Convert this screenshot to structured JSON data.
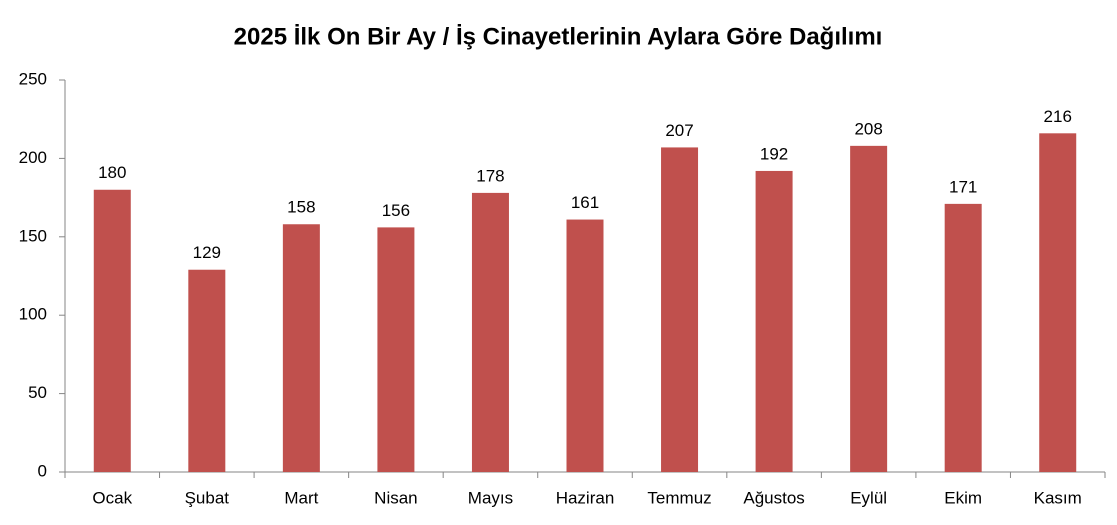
{
  "chart_data": {
    "type": "bar",
    "title": "2025 İlk On Bir Ay / İş Cinayetlerinin Aylara Göre Dağılımı",
    "categories": [
      "Ocak",
      "Şubat",
      "Mart",
      "Nisan",
      "Mayıs",
      "Haziran",
      "Temmuz",
      "Ağustos",
      "Eylül",
      "Ekim",
      "Kasım"
    ],
    "values": [
      180,
      129,
      158,
      156,
      178,
      161,
      207,
      192,
      208,
      171,
      216
    ],
    "color": "#c0504d",
    "ylim": [
      0,
      250
    ],
    "yticks": [
      0,
      50,
      100,
      150,
      200,
      250
    ],
    "grid": false
  }
}
